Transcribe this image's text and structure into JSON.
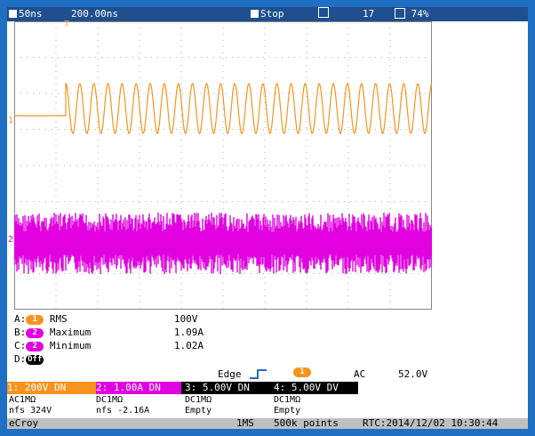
{
  "topbar": {
    "timebase_label": "50ns",
    "delay_label": "200.00ns",
    "mode": "Stop",
    "sweeps": "17",
    "zoom": "74%"
  },
  "channel_markers": {
    "ch1": "1",
    "ch2": "2",
    "trigger": "T"
  },
  "measurements": [
    {
      "prefix": "A:",
      "channel": "1",
      "name": "RMS",
      "value": "100V",
      "color": "#f7931e"
    },
    {
      "prefix": "B:",
      "channel": "2",
      "name": "Maximum",
      "value": "1.09A",
      "color": "#e000e0"
    },
    {
      "prefix": "C:",
      "channel": "2",
      "name": "Minimum",
      "value": "1.02A",
      "color": "#e000e0"
    },
    {
      "prefix": "D:",
      "channel": "Off",
      "name": "",
      "value": "",
      "color": "#000000"
    }
  ],
  "trigger": {
    "type": "Edge",
    "source": "1",
    "coupling": "AC",
    "level": "52.0V"
  },
  "channels": {
    "c1": "1: 200V  DN",
    "c2": "2: 1.00A  DN",
    "c3": "3: 5.00V  DN",
    "c4": "4: 5.00V  DV"
  },
  "coupling_rows": {
    "col1_line1": "AC1MΩ",
    "col1_line2": "nfs     324V",
    "col2_line1": "DC1MΩ",
    "col2_line2": "nfs     -2.16A",
    "col3_line1": "DC1MΩ",
    "col3_line2": "Empty",
    "col4_line1": "DC1MΩ",
    "col4_line2": "Empty"
  },
  "bottom": {
    "brand": "eCroy",
    "acq": "1MS",
    "points": "500k points",
    "rtc": "RTC:2014/12/02 10:30:44"
  },
  "colors": {
    "ch1": "#f7931e",
    "ch2": "#e000e0",
    "frame": "#1f6fc4",
    "topbar": "#1f4f8e"
  }
}
